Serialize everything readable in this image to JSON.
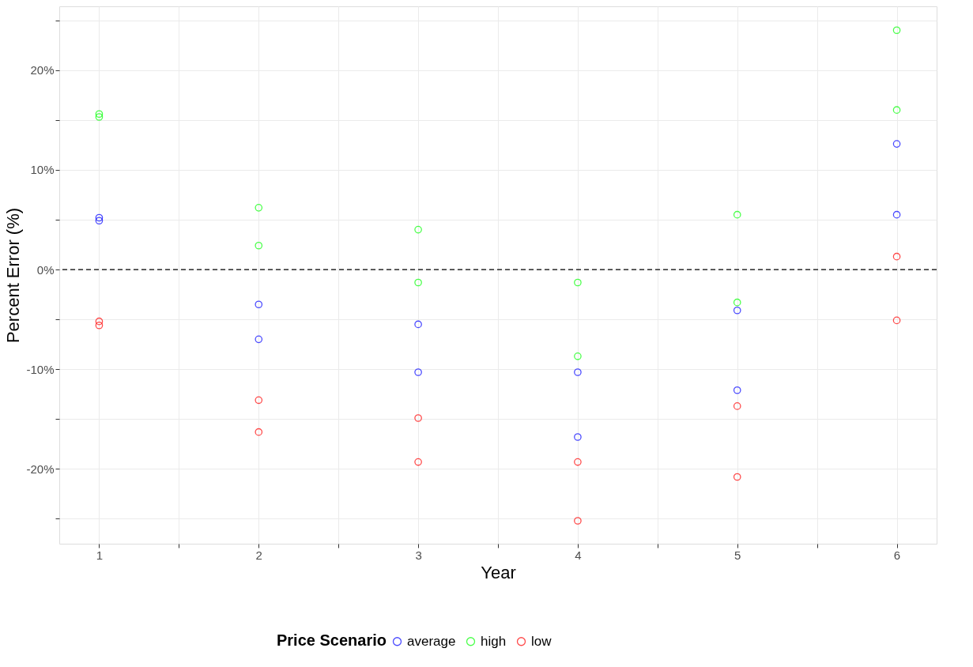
{
  "chart_data": {
    "type": "scatter",
    "xlabel": "Year",
    "ylabel": "Percent Error (%)",
    "legend_title": "Price Scenario",
    "series": [
      {
        "name": "average",
        "color": "#0000ff",
        "x": [
          1,
          1,
          2,
          2,
          3,
          3,
          4,
          4,
          5,
          5,
          6,
          6
        ],
        "values": [
          5.2,
          4.9,
          -3.5,
          -7.0,
          -5.5,
          -10.3,
          -10.3,
          -16.8,
          -4.1,
          -12.1,
          12.6,
          5.5
        ]
      },
      {
        "name": "high",
        "color": "#00ff00",
        "x": [
          1,
          1,
          2,
          2,
          3,
          3,
          4,
          4,
          5,
          5,
          6,
          6
        ],
        "values": [
          15.6,
          15.3,
          6.2,
          2.4,
          4.0,
          -1.3,
          -1.3,
          -8.7,
          5.5,
          -3.3,
          24.0,
          16.0
        ]
      },
      {
        "name": "low",
        "color": "#ff0000",
        "x": [
          1,
          1,
          2,
          2,
          3,
          3,
          4,
          4,
          5,
          5,
          6,
          6
        ],
        "values": [
          -5.2,
          -5.6,
          -13.1,
          -16.3,
          -14.9,
          -19.3,
          -19.3,
          -25.2,
          -13.7,
          -20.8,
          1.3,
          -5.1
        ]
      }
    ],
    "xlim": [
      0.75,
      6.25
    ],
    "ylim": [
      -27.5,
      26.4
    ],
    "xticks": [
      1,
      {
        "value": 1.5,
        "label": null
      },
      2,
      {
        "value": 2.5,
        "label": null
      },
      3,
      {
        "value": 3.5,
        "label": null
      },
      4,
      {
        "value": 4.5,
        "label": null
      },
      5,
      {
        "value": 5.5,
        "label": null
      },
      6
    ],
    "yticks": [
      {
        "value": -25,
        "label": null
      },
      {
        "value": -20,
        "label": "-20%"
      },
      {
        "value": -15,
        "label": null
      },
      {
        "value": -10,
        "label": "-10%"
      },
      {
        "value": -5,
        "label": null
      },
      {
        "value": 0,
        "label": "0%"
      },
      {
        "value": 5,
        "label": null
      },
      {
        "value": 10,
        "label": "10%"
      },
      {
        "value": 15,
        "label": null
      },
      {
        "value": 20,
        "label": "20%"
      },
      {
        "value": 25,
        "label": null
      }
    ],
    "ref_lines": [
      {
        "axis": "y",
        "value": 0,
        "color": "#000000",
        "line_style": "dashed"
      }
    ],
    "grid": true,
    "legend": "bottom",
    "marker": "circle"
  }
}
